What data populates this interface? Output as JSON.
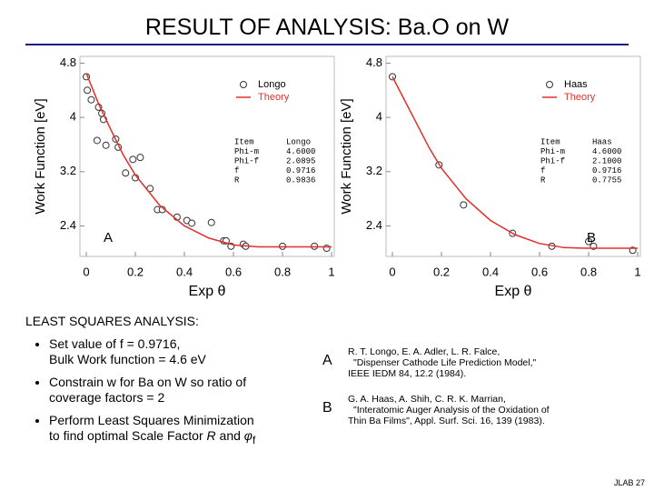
{
  "slide": {
    "title": "RESULT OF ANALYSIS:  Ba.O on W",
    "heading": "LEAST SQUARES ANALYSIS:",
    "bullets": [
      [
        "Set value of f = 0.9716,",
        "Bulk Work function = 4.6 eV"
      ],
      [
        "Constrain w for Ba on W so ratio of",
        "coverage factors = 2"
      ],
      [
        "Perform Least Squares Minimization",
        "to find optimal Scale Factor ",
        "R",
        " and ",
        "φ",
        "f"
      ]
    ],
    "references": [
      {
        "key": "A",
        "lines": [
          "R. T. Longo, E. A. Adler, L. R. Falce,",
          "\"Dispenser Cathode Life Prediction Model,\"",
          "IEEE IEDM 84, 12.2 (1984)."
        ]
      },
      {
        "key": "B",
        "lines": [
          "G. A. Haas, A. Shih, C. R. K. Marrian,",
          "\"Interatomic Auger Analysis of the Oxidation of",
          "Thin Ba Films\", Appl. Surf. Sci. 16, 139 (1983)."
        ]
      }
    ],
    "footer": "JLAB 27"
  },
  "chart_data": [
    {
      "type": "scatter",
      "label": "A",
      "xlabel": "Exp θ",
      "ylabel": "Work Function [eV]",
      "xlim": [
        -0.026,
        1.011
      ],
      "ylim": [
        1.95,
        4.9
      ],
      "xticks": [
        0,
        0.2,
        0.4,
        0.6,
        0.8,
        1
      ],
      "yticks": [
        2.4,
        3.2,
        4,
        4.8
      ],
      "series": [
        {
          "name": "Longo",
          "style": "points",
          "color": "#333333",
          "x": [
            0,
            0.004,
            0.02,
            0.05,
            0.063,
            0.07,
            0.044,
            0.08,
            0.12,
            0.13,
            0.19,
            0.16,
            0.2,
            0.22,
            0.26,
            0.29,
            0.31,
            0.37,
            0.41,
            0.43,
            0.51,
            0.56,
            0.57,
            0.59,
            0.64,
            0.65,
            0.8,
            0.93,
            0.98
          ],
          "values": [
            4.6,
            4.4,
            4.26,
            4.15,
            4.06,
            3.97,
            3.66,
            3.59,
            3.68,
            3.56,
            3.38,
            3.18,
            3.11,
            3.41,
            2.95,
            2.64,
            2.64,
            2.53,
            2.48,
            2.44,
            2.45,
            2.18,
            2.18,
            2.1,
            2.13,
            2.1,
            2.1,
            2.1,
            2.07
          ]
        },
        {
          "name": "Theory",
          "style": "line",
          "color": "#e0302a",
          "x": [
            0,
            0.05,
            0.1,
            0.15,
            0.2,
            0.3,
            0.4,
            0.5,
            0.6,
            0.7,
            0.8,
            0.9,
            1
          ],
          "values": [
            4.65,
            4.2,
            3.82,
            3.45,
            3.15,
            2.7,
            2.4,
            2.22,
            2.12,
            2.09,
            2.09,
            2.09,
            2.09
          ]
        }
      ],
      "table": [
        [
          "Item",
          "Longo"
        ],
        [
          "Phi-m",
          "4.6000"
        ],
        [
          "Phi-f",
          "2.0895"
        ],
        [
          "f",
          "0.9716"
        ],
        [
          "R",
          "0.9836"
        ]
      ]
    },
    {
      "type": "scatter",
      "label": "B",
      "xlabel": "Exp θ",
      "ylabel": "Work Function [eV]",
      "xlim": [
        -0.026,
        1.011
      ],
      "ylim": [
        1.95,
        4.9
      ],
      "xticks": [
        0,
        0.2,
        0.4,
        0.6,
        0.8,
        1
      ],
      "yticks": [
        2.4,
        3.2,
        4,
        4.8
      ],
      "series": [
        {
          "name": "Haas",
          "style": "points",
          "color": "#333333",
          "x": [
            0,
            0.19,
            0.29,
            0.49,
            0.65,
            0.8,
            0.82,
            0.98
          ],
          "values": [
            4.6,
            3.3,
            2.71,
            2.29,
            2.1,
            2.17,
            2.1,
            2.04
          ]
        },
        {
          "name": "Theory",
          "style": "line",
          "color": "#e0302a",
          "x": [
            0,
            0.05,
            0.1,
            0.15,
            0.2,
            0.3,
            0.4,
            0.5,
            0.6,
            0.7,
            0.8,
            0.9,
            1
          ],
          "values": [
            4.6,
            4.25,
            3.9,
            3.55,
            3.25,
            2.8,
            2.48,
            2.27,
            2.14,
            2.08,
            2.07,
            2.07,
            2.07
          ]
        }
      ],
      "table": [
        [
          "Item",
          "Haas"
        ],
        [
          "Phi-m",
          "4.6000"
        ],
        [
          "Phi-f",
          "2.1000"
        ],
        [
          "f",
          "0.9716"
        ],
        [
          "R",
          "0.7755"
        ]
      ]
    }
  ]
}
